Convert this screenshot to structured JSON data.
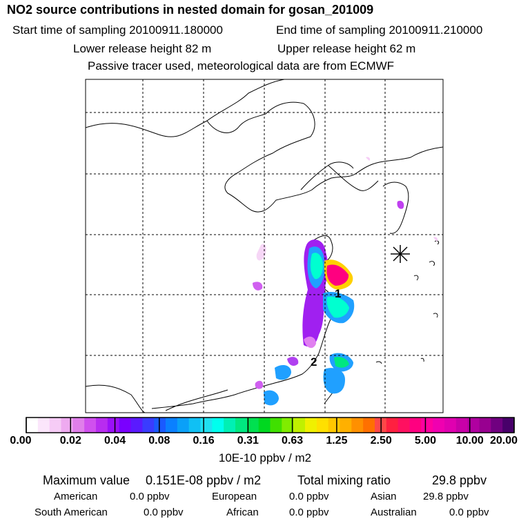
{
  "header": {
    "title": "NO2 source contributions in nested domain for gosan_201009",
    "start_time": "Start time of sampling 20100911.180000",
    "end_time": "End time of sampling 20100911.210000",
    "lower_height": "Lower release height   82 m",
    "upper_height": "Upper release height   62 m",
    "note": "Passive tracer used, meteorological data are from ECMWF"
  },
  "map": {
    "site_labels": [
      "1",
      "2"
    ],
    "receptor_marker": "asterisk",
    "colors": {
      "hot": "#ff0080",
      "mid": "#ffd000",
      "cool": "#00ffff",
      "low": "#a020f0"
    }
  },
  "colorbar": {
    "ticks": [
      "0.00",
      "0.02",
      "0.04",
      "0.08",
      "0.16",
      "0.31",
      "0.63",
      "1.25",
      "2.50",
      "5.00",
      "10.00",
      "20.00"
    ],
    "colors": [
      "#ffffff",
      "#fbe6fb",
      "#f6ccf6",
      "#eeaaf0",
      "#e07fea",
      "#d050ee",
      "#b82cf0",
      "#9b10f8",
      "#7a00ff",
      "#5a1aff",
      "#3a3cff",
      "#1a5aff",
      "#0a80ff",
      "#0aa0f8",
      "#10c0f4",
      "#20e0f0",
      "#00ffee",
      "#00f0b4",
      "#00e880",
      "#00e050",
      "#00d820",
      "#40e000",
      "#80ec00",
      "#c0f000",
      "#f0f000",
      "#ffe000",
      "#ffc800",
      "#ffb000",
      "#ff9000",
      "#ff7000",
      "#ff4848",
      "#ff2040",
      "#ff1060",
      "#ff0080",
      "#ff00a0",
      "#f000b0",
      "#e000b0",
      "#c800a8",
      "#b000a0",
      "#980090",
      "#700080",
      "#48006a"
    ],
    "unit": "10E-10 ppbv / m2"
  },
  "stats": {
    "max_label": "Maximum value",
    "max_value": "0.151E-08 ppbv / m2",
    "total_label": "Total mixing ratio",
    "total_value": "29.8 ppbv",
    "american_label": "American",
    "american_value": "0.0 ppbv",
    "european_label": "European",
    "european_value": "0.0 ppbv",
    "asian_label": "Asian",
    "asian_value": "29.8 ppbv",
    "south_american_label": "South American",
    "south_american_value": "0.0 ppbv",
    "african_label": "African",
    "african_value": "0.0 ppbv",
    "australian_label": "Australian",
    "australian_value": "0.0 ppbv"
  }
}
